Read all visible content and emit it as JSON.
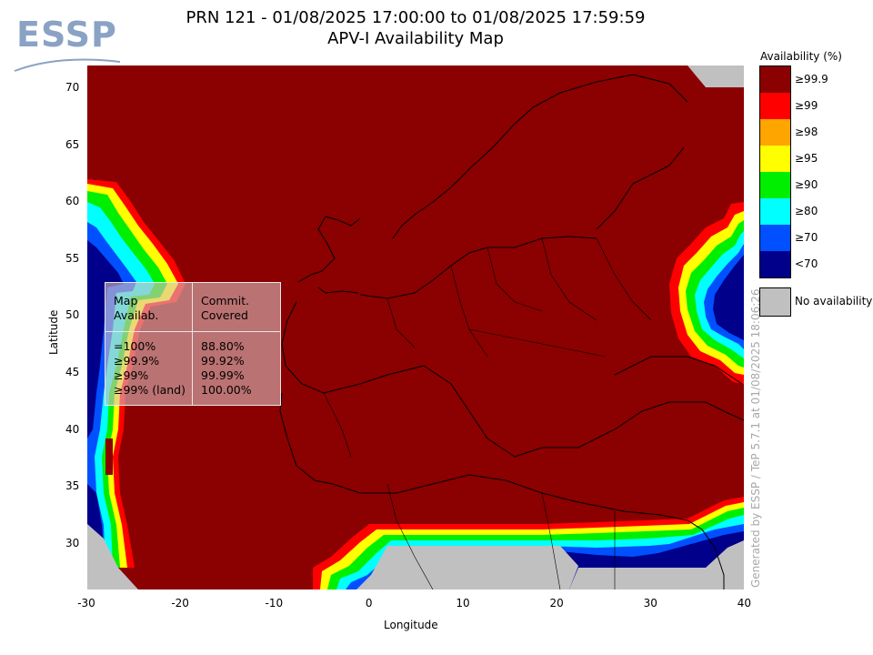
{
  "logo": {
    "text": "ESSP"
  },
  "title": {
    "line1": "PRN 121 - 01/08/2025 17:00:00 to 01/08/2025 17:59:59",
    "line2": "APV-I Availability Map"
  },
  "axes": {
    "xlabel": "Longitude",
    "ylabel": "Latitude",
    "x_ticks": [
      "-30",
      "-20",
      "-10",
      "0",
      "10",
      "20",
      "30",
      "40"
    ],
    "y_ticks": [
      "70",
      "65",
      "60",
      "55",
      "50",
      "45",
      "40",
      "35",
      "30"
    ],
    "xlim": [
      -30,
      40
    ],
    "ylim": [
      26,
      72
    ]
  },
  "legend": {
    "title": "Availability (%)",
    "items": [
      {
        "label": "≥99.9",
        "color": "#8b0000"
      },
      {
        "label": "≥99",
        "color": "#ff0000"
      },
      {
        "label": "≥98",
        "color": "#ffa500"
      },
      {
        "label": "≥95",
        "color": "#ffff00"
      },
      {
        "label": "≥90",
        "color": "#00ee00"
      },
      {
        "label": "≥80",
        "color": "#00ffff"
      },
      {
        "label": "≥70",
        "color": "#0050ff"
      },
      {
        "label": "<70",
        "color": "#00008b"
      }
    ],
    "no_availability": {
      "label": "No availability",
      "color": "#c0c0c0"
    }
  },
  "stats_table": {
    "header_left": "Map\nAvailab.",
    "header_right": "Commit.\nCovered",
    "rows_left": "=100%\n≥99.9%\n≥99%\n≥99% (land)",
    "rows_right": "88.80%\n99.92%\n99.99%\n100.00%"
  },
  "credit": "Generated by ESSP / TeP 5.7.1 at 01/08/2025 18:06:26"
}
